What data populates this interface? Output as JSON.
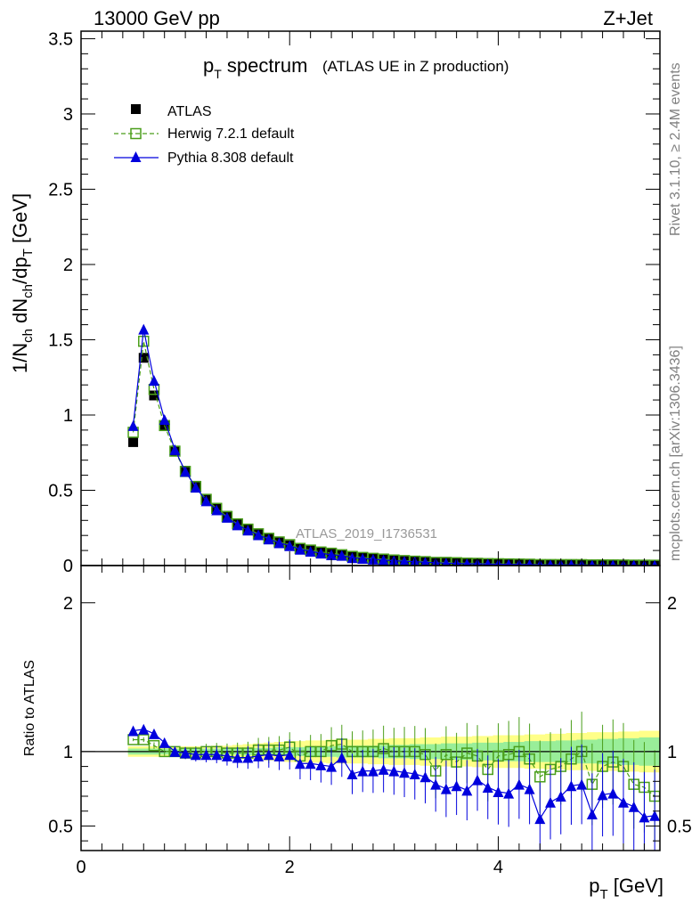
{
  "header": {
    "left": "13000 GeV pp",
    "right": "Z+Jet",
    "side_top": "Rivet 3.1.10, ≥ 2.4M events",
    "side_bottom": "mcplots.cern.ch [arXiv:1306.3436]"
  },
  "chart_data": {
    "type": "line",
    "title_main": "p",
    "title_sub": "T",
    "title_rest": " spectrum",
    "title_paren": "(ATLAS UE in Z production)",
    "watermark": "ATLAS_2019_I1736531",
    "xlabel": "p",
    "xlabel_sub": "T",
    "xlabel_unit": " [GeV]",
    "ylabel": {
      "p1": "1/N",
      "s1": "ch",
      "p2": " dN",
      "s2": "ch",
      "p3": "/dp",
      "s3": "T",
      "p4": " [GeV]"
    },
    "ratio_ylabel": "Ratio to ATLAS",
    "xlim": [
      0,
      5.55
    ],
    "ylim": [
      0,
      3.55
    ],
    "ratio_ylim": [
      0.335,
      2.25
    ],
    "x_ticks": [
      0,
      2,
      4
    ],
    "x_tick_labels": [
      "0",
      "2",
      "4"
    ],
    "y_ticks": [
      0,
      0.5,
      1,
      1.5,
      2,
      2.5,
      3,
      3.5
    ],
    "y_tick_labels": [
      "0",
      "0.5",
      "1",
      "1.5",
      "2",
      "2.5",
      "3",
      "3.5"
    ],
    "ratio_y_ticks": [
      0.5,
      1,
      2
    ],
    "ratio_y_tick_labels": [
      "0.5",
      "1",
      "2"
    ],
    "legend_position": "top-left",
    "x": [
      0.5,
      0.6,
      0.7,
      0.8,
      0.9,
      1.0,
      1.1,
      1.2,
      1.3,
      1.4,
      1.5,
      1.6,
      1.7,
      1.8,
      1.9,
      2.0,
      2.1,
      2.2,
      2.3,
      2.4,
      2.5,
      2.6,
      2.7,
      2.8,
      2.9,
      3.0,
      3.1,
      3.2,
      3.3,
      3.4,
      3.5,
      3.6,
      3.7,
      3.8,
      3.9,
      4.0,
      4.1,
      4.2,
      4.3,
      4.4,
      4.5,
      4.6,
      4.7,
      4.8,
      4.9,
      5.0,
      5.1,
      5.2,
      5.3,
      5.4,
      5.5
    ],
    "series": [
      {
        "name": "ATLAS",
        "color": "#000000",
        "marker": "square",
        "values": [
          0.82,
          1.38,
          1.13,
          0.93,
          0.76,
          0.63,
          0.53,
          0.44,
          0.38,
          0.33,
          0.28,
          0.245,
          0.21,
          0.18,
          0.155,
          0.135,
          0.118,
          0.103,
          0.09,
          0.079,
          0.069,
          0.061,
          0.054,
          0.048,
          0.042,
          0.037,
          0.033,
          0.029,
          0.026,
          0.023,
          0.021,
          0.019,
          0.017,
          0.015,
          0.014,
          0.012,
          0.011,
          0.01,
          0.009,
          0.008,
          0.0075,
          0.007,
          0.0065,
          0.006,
          0.0055,
          0.005,
          0.0046,
          0.0042,
          0.0038,
          0.0035,
          0.0032
        ]
      },
      {
        "name": "Herwig 7.2.1 default",
        "color": "#4a9e1a",
        "marker": "open-square",
        "dash": "5,3",
        "values": [
          0.885,
          1.49,
          1.17,
          0.93,
          0.76,
          0.625,
          0.525,
          0.44,
          0.38,
          0.326,
          0.277,
          0.242,
          0.211,
          0.181,
          0.157,
          0.139,
          0.114,
          0.103,
          0.09,
          0.082,
          0.072,
          0.061,
          0.054,
          0.048,
          0.043,
          0.037,
          0.033,
          0.029,
          0.026,
          0.021,
          0.021,
          0.019,
          0.016,
          0.015,
          0.013,
          0.012,
          0.011,
          0.01,
          0.009,
          0.0066,
          0.0066,
          0.0063,
          0.0064,
          0.006,
          0.0043,
          0.0045,
          0.0043,
          0.0038,
          0.003,
          0.0027,
          0.0023
        ]
      },
      {
        "name": "Pythia 8.308 default",
        "color": "#0000dd",
        "marker": "triangle",
        "values": [
          0.93,
          1.57,
          1.23,
          0.97,
          0.77,
          0.625,
          0.52,
          0.43,
          0.37,
          0.32,
          0.27,
          0.235,
          0.204,
          0.176,
          0.151,
          0.132,
          0.108,
          0.095,
          0.082,
          0.071,
          0.067,
          0.052,
          0.047,
          0.042,
          0.037,
          0.032,
          0.029,
          0.025,
          0.022,
          0.018,
          0.016,
          0.014,
          0.012,
          0.012,
          0.01,
          0.0088,
          0.0078,
          0.0074,
          0.0068,
          0.0044,
          0.0049,
          0.0049,
          0.005,
          0.0047,
          0.0032,
          0.0035,
          0.0033,
          0.0027,
          0.0024,
          0.0019,
          0.0018
        ]
      }
    ],
    "ratios": {
      "Herwig 7.2.1 default": [
        1.08,
        1.08,
        1.04,
        1.0,
        1.0,
        0.99,
        0.99,
        1.0,
        1.0,
        0.99,
        0.99,
        0.99,
        1.01,
        1.01,
        1.01,
        1.03,
        0.97,
        1.0,
        1.0,
        1.04,
        1.05,
        1.0,
        1.0,
        1.0,
        1.02,
        1.0,
        1.0,
        1.0,
        0.98,
        0.87,
        0.98,
        0.93,
        0.99,
        0.97,
        0.88,
        0.97,
        0.98,
        1.0,
        0.95,
        0.83,
        0.88,
        0.9,
        0.95,
        1.0,
        0.78,
        0.9,
        0.93,
        0.9,
        0.78,
        0.76,
        0.7
      ],
      "Pythia 8.308 default": [
        1.14,
        1.15,
        1.12,
        1.06,
        1.0,
        0.99,
        0.98,
        0.98,
        0.98,
        0.97,
        0.96,
        0.96,
        0.97,
        0.98,
        0.97,
        0.98,
        0.92,
        0.92,
        0.91,
        0.9,
        0.96,
        0.85,
        0.87,
        0.87,
        0.88,
        0.87,
        0.86,
        0.85,
        0.83,
        0.78,
        0.75,
        0.77,
        0.74,
        0.81,
        0.76,
        0.73,
        0.72,
        0.78,
        0.75,
        0.55,
        0.66,
        0.7,
        0.77,
        0.78,
        0.58,
        0.71,
        0.72,
        0.66,
        0.63,
        0.56,
        0.57
      ]
    },
    "bands": {
      "stat": [
        0.02,
        0.02,
        0.02,
        0.02,
        0.02,
        0.02,
        0.02,
        0.02,
        0.02,
        0.02,
        0.02,
        0.025,
        0.025,
        0.025,
        0.03,
        0.03,
        0.03,
        0.035,
        0.035,
        0.035,
        0.04,
        0.04,
        0.04,
        0.04,
        0.045,
        0.045,
        0.045,
        0.05,
        0.05,
        0.05,
        0.055,
        0.055,
        0.055,
        0.06,
        0.06,
        0.06,
        0.065,
        0.065,
        0.07,
        0.07,
        0.07,
        0.075,
        0.075,
        0.08,
        0.08,
        0.085,
        0.085,
        0.09,
        0.09,
        0.095,
        0.095
      ],
      "total": [
        0.035,
        0.035,
        0.035,
        0.035,
        0.035,
        0.035,
        0.035,
        0.035,
        0.04,
        0.04,
        0.045,
        0.05,
        0.055,
        0.06,
        0.065,
        0.07,
        0.07,
        0.075,
        0.075,
        0.08,
        0.08,
        0.08,
        0.08,
        0.085,
        0.085,
        0.09,
        0.09,
        0.09,
        0.095,
        0.095,
        0.1,
        0.1,
        0.1,
        0.105,
        0.105,
        0.11,
        0.11,
        0.11,
        0.115,
        0.115,
        0.12,
        0.12,
        0.125,
        0.125,
        0.13,
        0.13,
        0.13,
        0.135,
        0.135,
        0.14,
        0.14
      ]
    }
  }
}
